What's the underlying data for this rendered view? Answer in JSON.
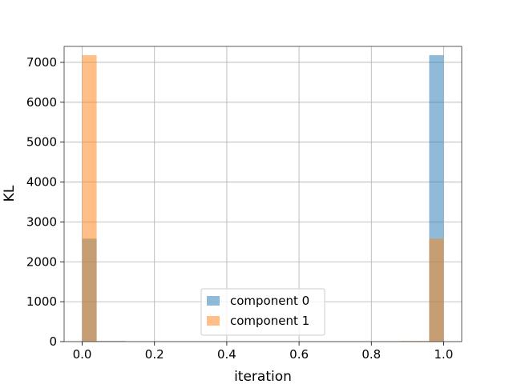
{
  "chart_data": {
    "type": "bar",
    "subtype": "overlaid-histogram",
    "xlabel": "iteration",
    "ylabel": "KL",
    "xlim": [
      -0.05,
      1.05
    ],
    "ylim": [
      0,
      7400
    ],
    "xticks": [
      0.0,
      0.2,
      0.4,
      0.6,
      0.8,
      1.0
    ],
    "xtick_labels": [
      "0.0",
      "0.2",
      "0.4",
      "0.6",
      "0.8",
      "1.0"
    ],
    "yticks": [
      0,
      1000,
      2000,
      3000,
      4000,
      5000,
      6000,
      7000
    ],
    "ytick_labels": [
      "0",
      "1000",
      "2000",
      "3000",
      "4000",
      "5000",
      "6000",
      "7000"
    ],
    "grid": true,
    "legend_position": "lower center",
    "bin_width": 0.04,
    "series": [
      {
        "name": "component 0",
        "color": "#1f77b4",
        "alpha": 0.5,
        "bins": [
          {
            "x0": 0.0,
            "x1": 0.04,
            "count": 2580
          },
          {
            "x0": 0.04,
            "x1": 0.08,
            "count": 15
          },
          {
            "x0": 0.08,
            "x1": 0.12,
            "count": 15
          },
          {
            "x0": 0.92,
            "x1": 0.96,
            "count": 10
          },
          {
            "x0": 0.96,
            "x1": 1.0,
            "count": 7180
          }
        ]
      },
      {
        "name": "component 1",
        "color": "#ff7f0e",
        "alpha": 0.5,
        "bins": [
          {
            "x0": 0.0,
            "x1": 0.04,
            "count": 7180
          },
          {
            "x0": 0.04,
            "x1": 0.08,
            "count": 10
          },
          {
            "x0": 0.88,
            "x1": 0.92,
            "count": 15
          },
          {
            "x0": 0.92,
            "x1": 0.96,
            "count": 15
          },
          {
            "x0": 0.96,
            "x1": 1.0,
            "count": 2580
          }
        ]
      }
    ]
  }
}
